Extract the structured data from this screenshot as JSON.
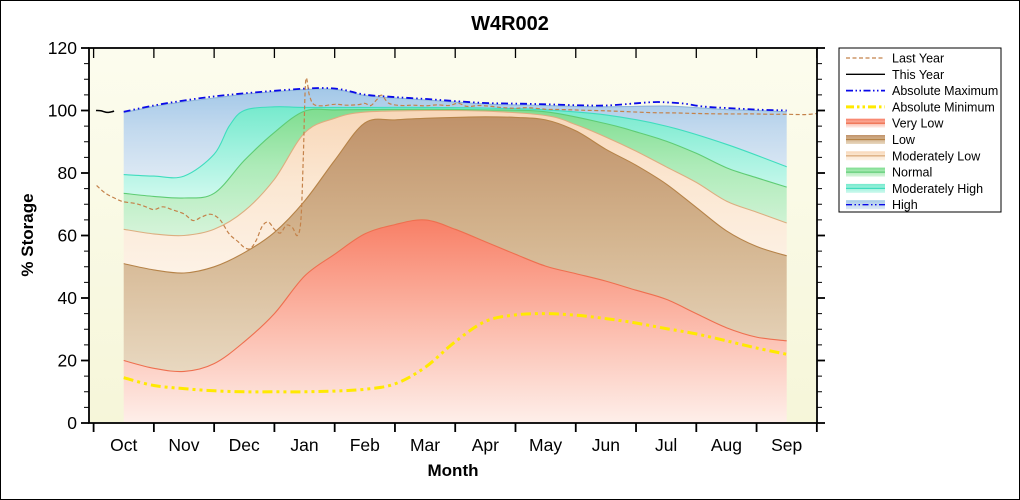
{
  "title": "W4R002",
  "axes": {
    "y_label": "% Storage",
    "x_label": "Month",
    "y_major_ticks": [
      0,
      20,
      40,
      60,
      80,
      100,
      120
    ],
    "y_minor_step": 5,
    "y_range": [
      0,
      120
    ],
    "months": [
      "Oct",
      "Nov",
      "Dec",
      "Jan",
      "Feb",
      "Mar",
      "Apr",
      "May",
      "Jun",
      "Jul",
      "Aug",
      "Sep"
    ]
  },
  "colors": {
    "plot_bg_top": "#FCFCEE",
    "plot_bg_bottom": "#F6F6D9",
    "frame": "#000000",
    "last_year": "#C4824A",
    "this_year": "#000000",
    "absolute_maximum": "#0909E8",
    "absolute_minimum": "#FFE900",
    "bands": {
      "very_low": {
        "top_edge": "#EE6F4F",
        "grad": [
          "#F87F66",
          "#FBB3A2",
          "#FEEFEA"
        ]
      },
      "low": {
        "top_edge": "#B68348",
        "grad": [
          "#C0926A",
          "#D3B38D",
          "#E8D8C0"
        ]
      },
      "mod_low": {
        "top_edge": "#DCAE80",
        "grad": [
          "#F8D7B8",
          "#FBE7D2",
          "#FDF2E6"
        ]
      },
      "normal": {
        "top_edge": "#5ECC74",
        "grad": [
          "#7FDD90",
          "#ADEBB8",
          "#D6F4DA"
        ]
      },
      "mod_high": {
        "top_edge": "#3FDDBE",
        "grad": [
          "#76EACD",
          "#9EF1DD",
          "#CFF9EE"
        ]
      },
      "high": {
        "top_edge": "#8FB6DA",
        "grad": [
          "#A3C8E8",
          "#C2D9EE",
          "#DDE9F4"
        ]
      }
    }
  },
  "legend": {
    "items": [
      {
        "label": "Last Year",
        "kind": "line",
        "color": "#C4824A",
        "width": 1.3,
        "dash": "4,2.5"
      },
      {
        "label": "This Year",
        "kind": "line",
        "color": "#000000",
        "width": 1.3,
        "dash": ""
      },
      {
        "label": "Absolute Maximum",
        "kind": "line",
        "color": "#0909E8",
        "width": 1.8,
        "dash": "7,2.5,1.5,2.5,1.5,2.5"
      },
      {
        "label": "Absolute Minimum",
        "kind": "line",
        "color": "#FFE900",
        "width": 3,
        "dash": "8,3,2.5,3,2.5,3"
      },
      {
        "label": "Very Low",
        "kind": "band",
        "band": "very_low"
      },
      {
        "label": "Low",
        "kind": "band",
        "band": "low"
      },
      {
        "label": "Moderately Low",
        "kind": "band",
        "band": "mod_low"
      },
      {
        "label": "Normal",
        "kind": "band",
        "band": "normal"
      },
      {
        "label": "Moderately High",
        "kind": "band",
        "band": "mod_high"
      },
      {
        "label": "High",
        "kind": "band",
        "band": "high",
        "edge_dashed": true
      }
    ]
  },
  "chart_data": {
    "type": "area",
    "title": "W4R002",
    "xlabel": "Month",
    "ylabel": "% Storage",
    "ylim": [
      0,
      120
    ],
    "categories": [
      "Oct",
      "Nov",
      "Dec",
      "Jan",
      "Feb",
      "Mar",
      "Apr",
      "May",
      "Jun",
      "Jul",
      "Aug",
      "Sep"
    ],
    "note": "points are [month_index (0=Oct .. 11=Sep, fractional allowed), percent_storage]",
    "boundaries": {
      "abs_min": [
        [
          0,
          14.5
        ],
        [
          0.5,
          12
        ],
        [
          1,
          11
        ],
        [
          1.5,
          10.3
        ],
        [
          2,
          10
        ],
        [
          2.5,
          10
        ],
        [
          3,
          10
        ],
        [
          3.5,
          10.2
        ],
        [
          4,
          10.8
        ],
        [
          4.5,
          12.5
        ],
        [
          5,
          17.8
        ],
        [
          5.5,
          26
        ],
        [
          6,
          32.5
        ],
        [
          6.5,
          34.6
        ],
        [
          7,
          35
        ],
        [
          7.5,
          34.5
        ],
        [
          8,
          33.4
        ],
        [
          8.5,
          32
        ],
        [
          9,
          30.2
        ],
        [
          9.5,
          28.5
        ],
        [
          10,
          26.3
        ],
        [
          10.5,
          24
        ],
        [
          11,
          22
        ]
      ],
      "very_low_top": [
        [
          0,
          20
        ],
        [
          0.5,
          17.5
        ],
        [
          1,
          16.5
        ],
        [
          1.5,
          19
        ],
        [
          2,
          26
        ],
        [
          2.5,
          35
        ],
        [
          3,
          47
        ],
        [
          3.5,
          54
        ],
        [
          4,
          60.5
        ],
        [
          4.5,
          63.5
        ],
        [
          5,
          65
        ],
        [
          5.5,
          62
        ],
        [
          6,
          58
        ],
        [
          6.5,
          54
        ],
        [
          7,
          50.2
        ],
        [
          7.5,
          47.8
        ],
        [
          8,
          45.4
        ],
        [
          8.5,
          42.5
        ],
        [
          9,
          39.6
        ],
        [
          9.5,
          35
        ],
        [
          10,
          30.5
        ],
        [
          10.5,
          27.5
        ],
        [
          11,
          26.3
        ]
      ],
      "low_top": [
        [
          0,
          51
        ],
        [
          0.5,
          49
        ],
        [
          1,
          48
        ],
        [
          1.5,
          50
        ],
        [
          2,
          54.5
        ],
        [
          2.5,
          61
        ],
        [
          3,
          71
        ],
        [
          3.5,
          84
        ],
        [
          4,
          96
        ],
        [
          4.5,
          97
        ],
        [
          5,
          97.5
        ],
        [
          5.5,
          97.8
        ],
        [
          6,
          98
        ],
        [
          6.5,
          97.8
        ],
        [
          7,
          97
        ],
        [
          7.5,
          93.5
        ],
        [
          8,
          87.6
        ],
        [
          8.5,
          82.5
        ],
        [
          9,
          76.5
        ],
        [
          9.5,
          69
        ],
        [
          10,
          61.5
        ],
        [
          10.5,
          56.5
        ],
        [
          11,
          53.5
        ]
      ],
      "mod_low_top": [
        [
          0,
          62
        ],
        [
          0.5,
          60.5
        ],
        [
          1,
          60
        ],
        [
          1.5,
          62
        ],
        [
          2,
          67.8
        ],
        [
          2.5,
          78
        ],
        [
          3,
          92.8
        ],
        [
          3.5,
          97.5
        ],
        [
          4,
          99.5
        ],
        [
          5,
          100
        ],
        [
          6,
          99.8
        ],
        [
          7,
          98.4
        ],
        [
          7.5,
          95.5
        ],
        [
          8,
          91.5
        ],
        [
          8.5,
          87
        ],
        [
          9,
          82
        ],
        [
          9.5,
          77
        ],
        [
          10,
          71
        ],
        [
          10.5,
          67.5
        ],
        [
          11,
          64
        ]
      ],
      "normal_top": [
        [
          0,
          73.5
        ],
        [
          0.5,
          72.5
        ],
        [
          1,
          72
        ],
        [
          1.5,
          73.5
        ],
        [
          2,
          84
        ],
        [
          2.5,
          93
        ],
        [
          3,
          99.8
        ],
        [
          3.5,
          100.2
        ],
        [
          4,
          100.3
        ],
        [
          5,
          100.4
        ],
        [
          6,
          100.2
        ],
        [
          7,
          99.6
        ],
        [
          8,
          95.8
        ],
        [
          8.5,
          93.2
        ],
        [
          9,
          90.2
        ],
        [
          9.5,
          86.3
        ],
        [
          10,
          81.7
        ],
        [
          10.5,
          78.5
        ],
        [
          11,
          75.5
        ]
      ],
      "mod_high_top": [
        [
          0,
          79.5
        ],
        [
          0.5,
          79
        ],
        [
          1,
          79
        ],
        [
          1.5,
          86
        ],
        [
          1.75,
          95
        ],
        [
          2,
          100
        ],
        [
          2.5,
          101.2
        ],
        [
          3,
          101
        ],
        [
          4,
          101
        ],
        [
          5,
          101
        ],
        [
          6,
          100.8
        ],
        [
          7,
          100.2
        ],
        [
          8,
          98.6
        ],
        [
          9,
          95
        ],
        [
          10,
          89.2
        ],
        [
          11,
          82
        ]
      ],
      "high_top": [
        [
          0,
          99.3
        ],
        [
          0.5,
          101.3
        ],
        [
          1,
          102.8
        ],
        [
          1.5,
          104
        ],
        [
          2,
          105.2
        ],
        [
          2.5,
          106
        ],
        [
          3,
          106.7
        ],
        [
          3.3,
          106.9
        ],
        [
          3.6,
          106.5
        ],
        [
          4,
          104.8
        ],
        [
          4.5,
          104
        ],
        [
          5,
          103.4
        ],
        [
          5.5,
          102.7
        ],
        [
          6,
          102.1
        ],
        [
          6.5,
          101.8
        ],
        [
          7,
          101.6
        ],
        [
          7.5,
          101.3
        ],
        [
          8,
          101.2
        ],
        [
          8.5,
          101.3
        ],
        [
          9,
          101.4
        ],
        [
          9.5,
          100.9
        ],
        [
          10,
          100.3
        ],
        [
          10.5,
          100
        ],
        [
          11,
          99.6
        ]
      ]
    },
    "bands": [
      {
        "name": "Very Low",
        "key": "very_low",
        "top": "very_low_top",
        "bottom": "zero"
      },
      {
        "name": "Low",
        "key": "low",
        "top": "low_top",
        "bottom": "very_low_top"
      },
      {
        "name": "Moderately Low",
        "key": "mod_low",
        "top": "mod_low_top",
        "bottom": "low_top"
      },
      {
        "name": "Normal",
        "key": "normal",
        "top": "normal_top",
        "bottom": "mod_low_top"
      },
      {
        "name": "Moderately High",
        "key": "mod_high",
        "top": "mod_high_top",
        "bottom": "normal_top"
      },
      {
        "name": "High",
        "key": "high",
        "top": "high_top",
        "bottom": "mod_high_top"
      }
    ],
    "lines": [
      {
        "name": "Absolute Minimum",
        "key": "absolute_minimum",
        "width": 3,
        "dash": "10,4,3,4,3,4",
        "points": "abs_min"
      },
      {
        "name": "Absolute Maximum",
        "key": "absolute_maximum",
        "width": 1.8,
        "dash": "7,3,1.5,3,1.5,3",
        "points_inline": [
          [
            0,
            99.6
          ],
          [
            0.5,
            101.6
          ],
          [
            1,
            103.2
          ],
          [
            1.5,
            104.5
          ],
          [
            2,
            105.5
          ],
          [
            2.5,
            106.3
          ],
          [
            3,
            107
          ],
          [
            3.3,
            107.2
          ],
          [
            3.6,
            106.8
          ],
          [
            4,
            105.1
          ],
          [
            4.5,
            104.3
          ],
          [
            5,
            103.7
          ],
          [
            5.5,
            103
          ],
          [
            6,
            102.4
          ],
          [
            6.5,
            102.2
          ],
          [
            7,
            102
          ],
          [
            7.5,
            101.7
          ],
          [
            8,
            101.6
          ],
          [
            8.5,
            102.3
          ],
          [
            8.8,
            102.7
          ],
          [
            9,
            102.6
          ],
          [
            9.3,
            102.2
          ],
          [
            9.6,
            101.3
          ],
          [
            10,
            100.8
          ],
          [
            10.5,
            100.3
          ],
          [
            11,
            100
          ]
        ]
      },
      {
        "name": "Last Year",
        "key": "last_year",
        "width": 1.2,
        "dash": "4,2.5",
        "points_inline": [
          [
            -0.45,
            76
          ],
          [
            -0.3,
            73.5
          ],
          [
            -0.1,
            71.5
          ],
          [
            0,
            70.8
          ],
          [
            0.2,
            70.2
          ],
          [
            0.35,
            69.3
          ],
          [
            0.5,
            68.3
          ],
          [
            0.65,
            69.2
          ],
          [
            0.8,
            68.3
          ],
          [
            1,
            66.9
          ],
          [
            1.15,
            64.8
          ],
          [
            1.3,
            66
          ],
          [
            1.45,
            66.8
          ],
          [
            1.6,
            65
          ],
          [
            1.75,
            60.5
          ],
          [
            1.9,
            58
          ],
          [
            2,
            56.2
          ],
          [
            2.1,
            55.8
          ],
          [
            2.2,
            58.5
          ],
          [
            2.3,
            63
          ],
          [
            2.4,
            64.3
          ],
          [
            2.5,
            62
          ],
          [
            2.6,
            60.8
          ],
          [
            2.7,
            63.3
          ],
          [
            2.8,
            62.5
          ],
          [
            2.88,
            60
          ],
          [
            2.94,
            65
          ],
          [
            2.98,
            85
          ],
          [
            3.02,
            109.5
          ],
          [
            3.08,
            105
          ],
          [
            3.15,
            102
          ],
          [
            3.3,
            101.5
          ],
          [
            3.5,
            102
          ],
          [
            3.7,
            101.7
          ],
          [
            3.9,
            101.9
          ],
          [
            4,
            102.3
          ],
          [
            4.1,
            101.6
          ],
          [
            4.2,
            103.5
          ],
          [
            4.28,
            104.9
          ],
          [
            4.4,
            102.3
          ],
          [
            4.6,
            101.6
          ],
          [
            4.8,
            101.7
          ],
          [
            5,
            101.5
          ],
          [
            5.2,
            101.8
          ],
          [
            5.4,
            101.6
          ],
          [
            5.55,
            102.3
          ],
          [
            5.7,
            101.3
          ],
          [
            5.9,
            101.6
          ],
          [
            6.1,
            101.3
          ],
          [
            6.3,
            100.9
          ],
          [
            6.5,
            100.7
          ],
          [
            6.7,
            100.9
          ],
          [
            7,
            100.4
          ],
          [
            7.3,
            100.3
          ],
          [
            7.6,
            100.1
          ],
          [
            8,
            99.9
          ],
          [
            8.4,
            99.6
          ],
          [
            8.8,
            99.3
          ],
          [
            9.2,
            99.2
          ],
          [
            9.6,
            99
          ],
          [
            10,
            98.9
          ],
          [
            10.4,
            98.9
          ],
          [
            10.8,
            98.8
          ],
          [
            11,
            98.8
          ],
          [
            11.3,
            98.7
          ],
          [
            11.49,
            99
          ]
        ]
      },
      {
        "name": "This Year",
        "key": "this_year",
        "width": 1.5,
        "dash": "",
        "points_inline": [
          [
            -0.46,
            100
          ],
          [
            -0.38,
            99.9
          ],
          [
            -0.28,
            99.4
          ],
          [
            -0.2,
            99.6
          ],
          [
            -0.16,
            99.8
          ]
        ]
      }
    ]
  }
}
